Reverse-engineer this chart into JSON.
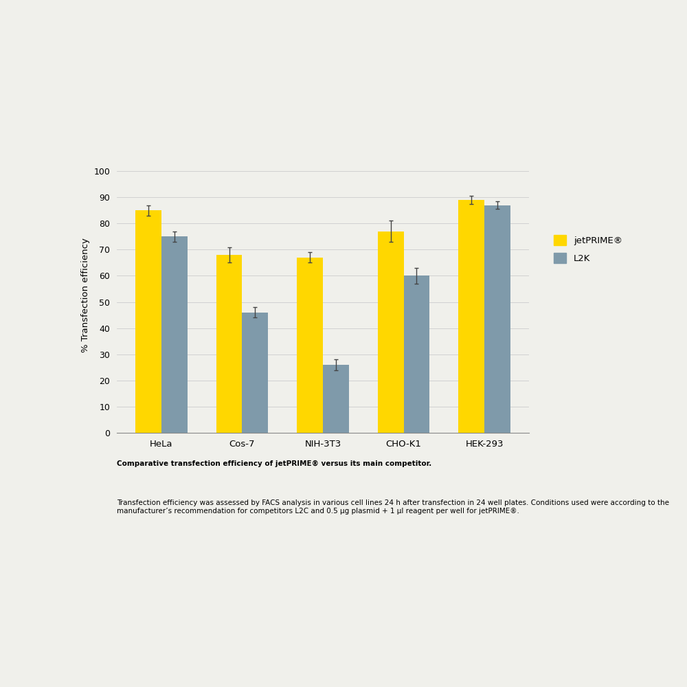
{
  "categories": [
    "HeLa",
    "Cos-7",
    "NIH-3T3",
    "CHO-K1",
    "HEK-293"
  ],
  "jetprime_values": [
    85,
    68,
    67,
    77,
    89
  ],
  "l2k_values": [
    75,
    46,
    26,
    60,
    87
  ],
  "jetprime_errors": [
    2,
    3,
    2,
    4,
    1.5
  ],
  "l2k_errors": [
    2,
    2,
    2,
    3,
    1.5
  ],
  "jetprime_color": "#FFD700",
  "l2k_color": "#7f9aaa",
  "ylabel": "% Transfection efficiency",
  "ylim": [
    0,
    105
  ],
  "yticks": [
    0,
    10,
    20,
    30,
    40,
    50,
    60,
    70,
    80,
    90,
    100
  ],
  "legend_jetprime": "jetPRIME®",
  "legend_l2k": "L2K",
  "caption_bold": "Comparative transfection efficiency of jetPRIME® versus its main competitor.",
  "caption_normal": " Transfection efficiency was assessed by FACS analysis in various cell lines 24 h after transfection in 24 well plates. Conditions used were according to the manufacturer’s recommendation for competitors L2C and 0.5 μg plasmid + 1 μl reagent per well for jetPRIME®.",
  "background_color": "#ffffff",
  "outer_bg": "#f0f0eb",
  "bar_width": 0.32,
  "figsize": [
    10,
    10
  ],
  "dpi": 100
}
